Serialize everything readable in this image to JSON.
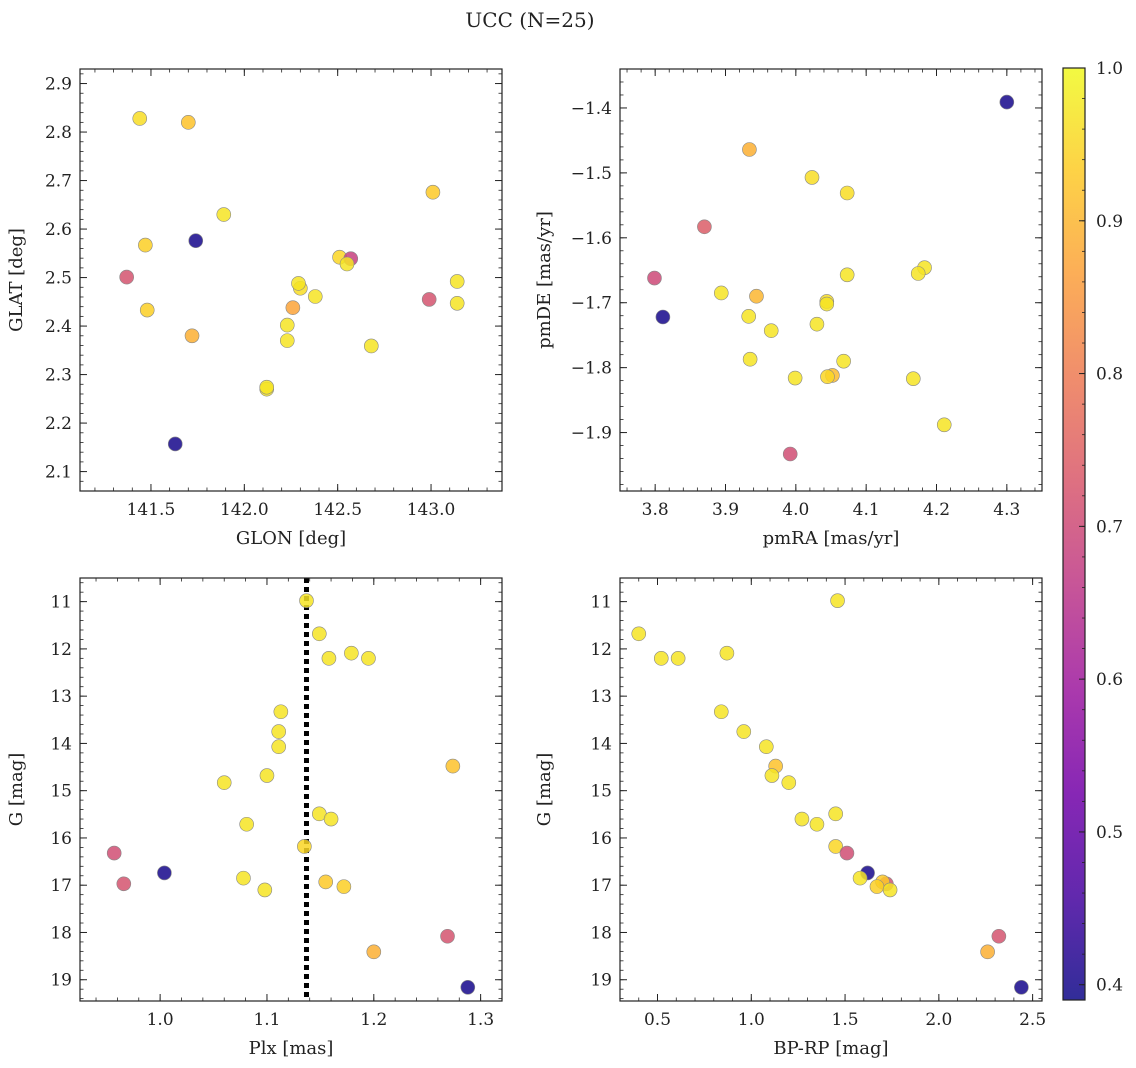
{
  "figure": {
    "title": "UCC (N=25)"
  },
  "colorbar": {
    "ticks": [
      0.4,
      0.5,
      0.6,
      0.7,
      0.8,
      0.9,
      1.0
    ],
    "tick_labels": [
      "0.4",
      "0.5",
      "0.6",
      "0.7",
      "0.8",
      "0.9",
      "1.0"
    ],
    "range": [
      0.39,
      1.0
    ],
    "colormap": "plasma",
    "stops": [
      "#0d0887",
      "#46039f",
      "#7201a8",
      "#9c179e",
      "#bd3786",
      "#d8576b",
      "#ed7953",
      "#fb9f3a",
      "#fdca26",
      "#f0f921"
    ]
  },
  "chart_data": [
    {
      "type": "scatter",
      "xlabel": "GLON [deg]",
      "ylabel": "GLAT [deg]",
      "xlim": [
        141.12,
        143.38
      ],
      "ylim": [
        2.06,
        2.93
      ],
      "xticks": [
        141.5,
        142.0,
        142.5,
        143.0
      ],
      "xtick_labels": [
        "141.5",
        "142.0",
        "142.5",
        "143.0"
      ],
      "yticks": [
        2.1,
        2.2,
        2.3,
        2.4,
        2.5,
        2.6,
        2.7,
        2.8,
        2.9
      ],
      "ytick_labels": [
        "2.1",
        "2.2",
        "2.3",
        "2.4",
        "2.5",
        "2.6",
        "2.7",
        "2.8",
        "2.9"
      ],
      "points": [
        {
          "x": 141.44,
          "y": 2.828,
          "c": 0.96
        },
        {
          "x": 141.7,
          "y": 2.82,
          "c": 0.92
        },
        {
          "x": 141.89,
          "y": 2.63,
          "c": 0.97
        },
        {
          "x": 141.47,
          "y": 2.567,
          "c": 0.94
        },
        {
          "x": 141.74,
          "y": 2.576,
          "c": 0.4
        },
        {
          "x": 141.37,
          "y": 2.501,
          "c": 0.72
        },
        {
          "x": 141.48,
          "y": 2.433,
          "c": 0.94
        },
        {
          "x": 141.72,
          "y": 2.38,
          "c": 0.89
        },
        {
          "x": 141.63,
          "y": 2.157,
          "c": 0.4
        },
        {
          "x": 142.12,
          "y": 2.27,
          "c": 0.97
        },
        {
          "x": 142.12,
          "y": 2.274,
          "c": 0.97
        },
        {
          "x": 142.23,
          "y": 2.37,
          "c": 0.97
        },
        {
          "x": 142.23,
          "y": 2.402,
          "c": 0.97
        },
        {
          "x": 142.26,
          "y": 2.438,
          "c": 0.87
        },
        {
          "x": 142.3,
          "y": 2.478,
          "c": 0.96
        },
        {
          "x": 142.29,
          "y": 2.488,
          "c": 0.97
        },
        {
          "x": 142.38,
          "y": 2.461,
          "c": 0.97
        },
        {
          "x": 142.51,
          "y": 2.542,
          "c": 0.95
        },
        {
          "x": 142.57,
          "y": 2.539,
          "c": 0.68
        },
        {
          "x": 142.55,
          "y": 2.528,
          "c": 0.97
        },
        {
          "x": 142.68,
          "y": 2.359,
          "c": 0.97
        },
        {
          "x": 142.99,
          "y": 2.455,
          "c": 0.72
        },
        {
          "x": 143.01,
          "y": 2.676,
          "c": 0.93
        },
        {
          "x": 143.14,
          "y": 2.492,
          "c": 0.97
        },
        {
          "x": 143.14,
          "y": 2.447,
          "c": 0.97
        }
      ]
    },
    {
      "type": "scatter",
      "xlabel": "pmRA [mas/yr]",
      "ylabel": "pmDE [mas/yr]",
      "xlim": [
        3.75,
        4.35
      ],
      "ylim": [
        -1.99,
        -1.34
      ],
      "xticks": [
        3.8,
        3.9,
        4.0,
        4.1,
        4.2,
        4.3
      ],
      "xtick_labels": [
        "3.8",
        "3.9",
        "4.0",
        "4.1",
        "4.2",
        "4.3"
      ],
      "yticks": [
        -1.9,
        -1.8,
        -1.7,
        -1.6,
        -1.5,
        -1.4
      ],
      "ytick_labels": [
        "−1.9",
        "−1.8",
        "−1.7",
        "−1.6",
        "−1.5",
        "−1.4"
      ],
      "points": [
        {
          "x": 4.3,
          "y": -1.391,
          "c": 0.4
        },
        {
          "x": 3.934,
          "y": -1.464,
          "c": 0.89
        },
        {
          "x": 4.023,
          "y": -1.507,
          "c": 0.96
        },
        {
          "x": 4.073,
          "y": -1.531,
          "c": 0.96
        },
        {
          "x": 3.87,
          "y": -1.583,
          "c": 0.74
        },
        {
          "x": 3.799,
          "y": -1.662,
          "c": 0.7
        },
        {
          "x": 4.073,
          "y": -1.657,
          "c": 0.97
        },
        {
          "x": 4.183,
          "y": -1.646,
          "c": 0.97
        },
        {
          "x": 4.174,
          "y": -1.655,
          "c": 0.97
        },
        {
          "x": 3.811,
          "y": -1.722,
          "c": 0.4
        },
        {
          "x": 3.894,
          "y": -1.685,
          "c": 0.97
        },
        {
          "x": 3.944,
          "y": -1.69,
          "c": 0.9
        },
        {
          "x": 3.933,
          "y": -1.721,
          "c": 0.97
        },
        {
          "x": 3.965,
          "y": -1.743,
          "c": 0.97
        },
        {
          "x": 4.044,
          "y": -1.698,
          "c": 0.96
        },
        {
          "x": 4.044,
          "y": -1.702,
          "c": 0.97
        },
        {
          "x": 4.03,
          "y": -1.733,
          "c": 0.97
        },
        {
          "x": 3.935,
          "y": -1.787,
          "c": 0.97
        },
        {
          "x": 4.068,
          "y": -1.79,
          "c": 0.97
        },
        {
          "x": 3.999,
          "y": -1.816,
          "c": 0.97
        },
        {
          "x": 4.052,
          "y": -1.812,
          "c": 0.91
        },
        {
          "x": 4.045,
          "y": -1.814,
          "c": 0.95
        },
        {
          "x": 4.167,
          "y": -1.817,
          "c": 0.97
        },
        {
          "x": 4.211,
          "y": -1.888,
          "c": 0.97
        },
        {
          "x": 3.992,
          "y": -1.933,
          "c": 0.71
        }
      ]
    },
    {
      "type": "scatter",
      "xlabel": "Plx [mas]",
      "ylabel": "G [mag]",
      "xlim": [
        0.925,
        1.32
      ],
      "ylim": [
        19.45,
        10.5
      ],
      "xticks": [
        1.0,
        1.1,
        1.2,
        1.3
      ],
      "xtick_labels": [
        "1.0",
        "1.1",
        "1.2",
        "1.3"
      ],
      "yticks": [
        11,
        12,
        13,
        14,
        15,
        16,
        17,
        18,
        19
      ],
      "ytick_labels": [
        "11",
        "12",
        "13",
        "14",
        "15",
        "16",
        "17",
        "18",
        "19"
      ],
      "vline": 1.137,
      "points": [
        {
          "x": 1.137,
          "y": 10.98,
          "c": 0.97
        },
        {
          "x": 1.149,
          "y": 11.68,
          "c": 0.97
        },
        {
          "x": 1.158,
          "y": 12.2,
          "c": 0.97
        },
        {
          "x": 1.179,
          "y": 12.09,
          "c": 0.97
        },
        {
          "x": 1.195,
          "y": 12.2,
          "c": 0.97
        },
        {
          "x": 1.113,
          "y": 13.33,
          "c": 0.97
        },
        {
          "x": 1.111,
          "y": 13.75,
          "c": 0.97
        },
        {
          "x": 1.111,
          "y": 14.07,
          "c": 0.97
        },
        {
          "x": 1.274,
          "y": 14.48,
          "c": 0.92
        },
        {
          "x": 1.1,
          "y": 14.68,
          "c": 0.97
        },
        {
          "x": 1.06,
          "y": 14.83,
          "c": 0.97
        },
        {
          "x": 1.149,
          "y": 15.49,
          "c": 0.97
        },
        {
          "x": 1.16,
          "y": 15.6,
          "c": 0.97
        },
        {
          "x": 1.081,
          "y": 15.71,
          "c": 0.97
        },
        {
          "x": 1.135,
          "y": 16.18,
          "c": 0.95
        },
        {
          "x": 0.957,
          "y": 16.32,
          "c": 0.71
        },
        {
          "x": 1.004,
          "y": 16.74,
          "c": 0.4
        },
        {
          "x": 0.966,
          "y": 16.97,
          "c": 0.72
        },
        {
          "x": 1.078,
          "y": 16.85,
          "c": 0.97
        },
        {
          "x": 1.155,
          "y": 16.93,
          "c": 0.93
        },
        {
          "x": 1.172,
          "y": 17.03,
          "c": 0.94
        },
        {
          "x": 1.098,
          "y": 17.1,
          "c": 0.97
        },
        {
          "x": 1.269,
          "y": 18.08,
          "c": 0.72
        },
        {
          "x": 1.2,
          "y": 18.41,
          "c": 0.89
        },
        {
          "x": 1.288,
          "y": 19.16,
          "c": 0.4
        }
      ]
    },
    {
      "type": "scatter",
      "xlabel": "BP-RP [mag]",
      "ylabel": "G [mag]",
      "xlim": [
        0.3,
        2.55
      ],
      "ylim": [
        19.45,
        10.5
      ],
      "xticks": [
        0.5,
        1.0,
        1.5,
        2.0,
        2.5
      ],
      "xtick_labels": [
        "0.5",
        "1.0",
        "1.5",
        "2.0",
        "2.5"
      ],
      "yticks": [
        11,
        12,
        13,
        14,
        15,
        16,
        17,
        18,
        19
      ],
      "ytick_labels": [
        "11",
        "12",
        "13",
        "14",
        "15",
        "16",
        "17",
        "18",
        "19"
      ],
      "points": [
        {
          "x": 1.46,
          "y": 10.98,
          "c": 0.97
        },
        {
          "x": 0.4,
          "y": 11.68,
          "c": 0.97
        },
        {
          "x": 0.52,
          "y": 12.2,
          "c": 0.97
        },
        {
          "x": 0.61,
          "y": 12.2,
          "c": 0.97
        },
        {
          "x": 0.87,
          "y": 12.09,
          "c": 0.97
        },
        {
          "x": 0.84,
          "y": 13.33,
          "c": 0.97
        },
        {
          "x": 0.96,
          "y": 13.75,
          "c": 0.97
        },
        {
          "x": 1.08,
          "y": 14.07,
          "c": 0.97
        },
        {
          "x": 1.13,
          "y": 14.48,
          "c": 0.92
        },
        {
          "x": 1.11,
          "y": 14.68,
          "c": 0.97
        },
        {
          "x": 1.2,
          "y": 14.83,
          "c": 0.97
        },
        {
          "x": 1.45,
          "y": 15.49,
          "c": 0.97
        },
        {
          "x": 1.27,
          "y": 15.6,
          "c": 0.97
        },
        {
          "x": 1.35,
          "y": 15.71,
          "c": 0.97
        },
        {
          "x": 1.45,
          "y": 16.18,
          "c": 0.95
        },
        {
          "x": 1.51,
          "y": 16.32,
          "c": 0.71
        },
        {
          "x": 1.62,
          "y": 16.74,
          "c": 0.4
        },
        {
          "x": 1.72,
          "y": 16.97,
          "c": 0.72
        },
        {
          "x": 1.58,
          "y": 16.85,
          "c": 0.97
        },
        {
          "x": 1.7,
          "y": 16.93,
          "c": 0.93
        },
        {
          "x": 1.67,
          "y": 17.03,
          "c": 0.94
        },
        {
          "x": 1.74,
          "y": 17.1,
          "c": 0.97
        },
        {
          "x": 2.32,
          "y": 18.08,
          "c": 0.72
        },
        {
          "x": 2.26,
          "y": 18.41,
          "c": 0.89
        },
        {
          "x": 2.44,
          "y": 19.16,
          "c": 0.4
        }
      ]
    }
  ]
}
